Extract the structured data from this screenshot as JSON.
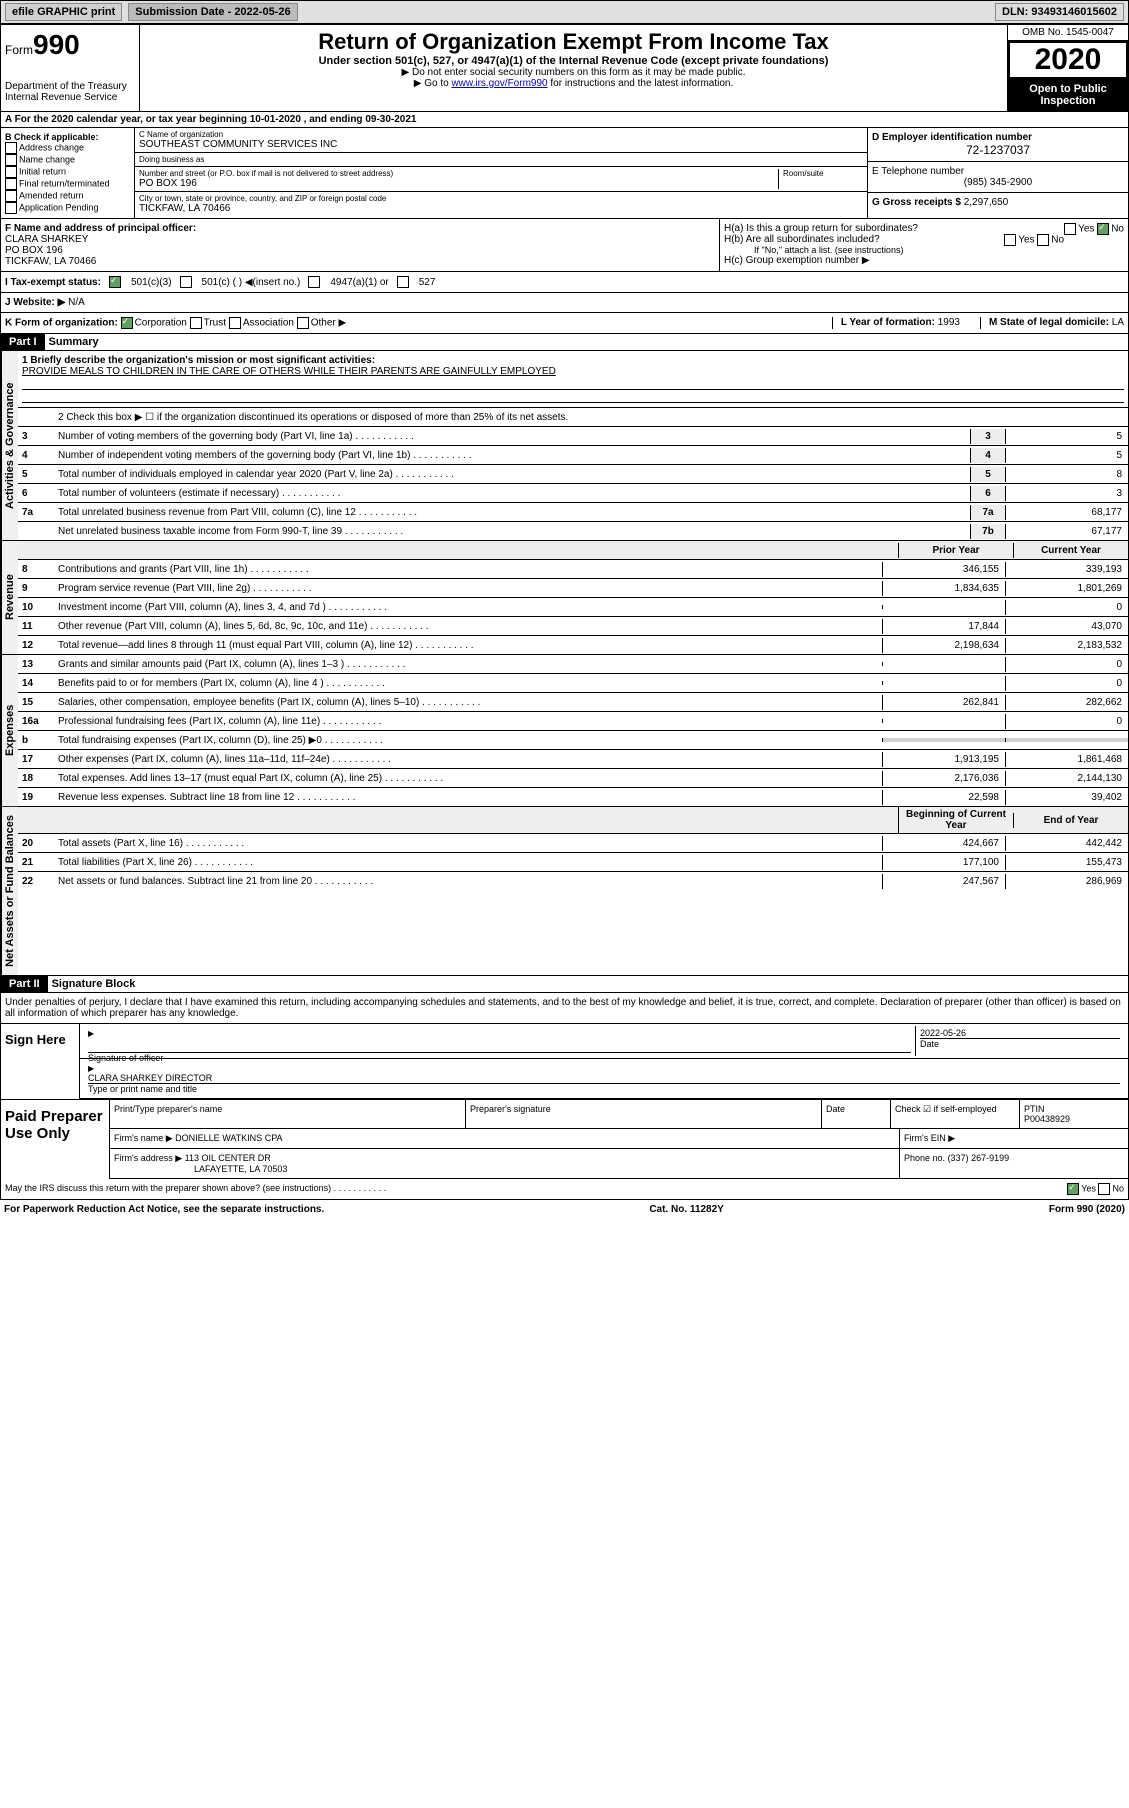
{
  "header": {
    "efile": "efile GRAPHIC print",
    "submission": "Submission Date - 2022-05-26",
    "dln": "DLN: 93493146015602"
  },
  "form": {
    "form_label": "Form",
    "form_number": "990",
    "dept": "Department of the Treasury\nInternal Revenue Service",
    "title": "Return of Organization Exempt From Income Tax",
    "subtitle": "Under section 501(c), 527, or 4947(a)(1) of the Internal Revenue Code (except private foundations)",
    "note1": "▶ Do not enter social security numbers on this form as it may be made public.",
    "note2_pre": "▶ Go to ",
    "note2_link": "www.irs.gov/Form990",
    "note2_post": " for instructions and the latest information.",
    "omb": "OMB No. 1545-0047",
    "year": "2020",
    "open_public": "Open to Public Inspection"
  },
  "section_a": "A For the 2020 calendar year, or tax year beginning 10-01-2020   , and ending 09-30-2021",
  "check_applicable": {
    "label": "B Check if applicable:",
    "opts": [
      "Address change",
      "Name change",
      "Initial return",
      "Final return/terminated",
      "Amended return",
      "Application Pending"
    ]
  },
  "org": {
    "name_label": "C Name of organization",
    "name": "SOUTHEAST COMMUNITY SERVICES INC",
    "dba_label": "Doing business as",
    "addr_label": "Number and street (or P.O. box if mail is not delivered to street address)",
    "room_label": "Room/suite",
    "addr": "PO BOX 196",
    "city_label": "City or town, state or province, country, and ZIP or foreign postal code",
    "city": "TICKFAW, LA  70466"
  },
  "ein": {
    "label": "D Employer identification number",
    "value": "72-1237037"
  },
  "phone": {
    "label": "E Telephone number",
    "value": "(985) 345-2900"
  },
  "gross": {
    "label": "G Gross receipts $",
    "value": "2,297,650"
  },
  "officer": {
    "label": "F Name and address of principal officer:",
    "name": "CLARA SHARKEY",
    "addr1": "PO BOX 196",
    "addr2": "TICKFAW, LA  70466"
  },
  "h": {
    "ha": "H(a)  Is this a group return for subordinates?",
    "hb": "H(b)  Are all subordinates included?",
    "hb_note": "If \"No,\" attach a list. (see instructions)",
    "hc": "H(c)  Group exemption number ▶",
    "yes": "Yes",
    "no": "No"
  },
  "tax_exempt": {
    "label": "I   Tax-exempt status:",
    "opt1": "501(c)(3)",
    "opt2": "501(c) (  ) ◀(insert no.)",
    "opt3": "4947(a)(1) or",
    "opt4": "527"
  },
  "website": {
    "label": "J   Website: ▶",
    "value": "N/A"
  },
  "form_org": {
    "label": "K Form of organization:",
    "opts": [
      "Corporation",
      "Trust",
      "Association",
      "Other ▶"
    ],
    "year_label": "L Year of formation:",
    "year": "1993",
    "state_label": "M State of legal domicile:",
    "state": "LA"
  },
  "part1": {
    "header": "Part I",
    "title": "Summary",
    "line1_label": "1  Briefly describe the organization's mission or most significant activities:",
    "line1_value": "PROVIDE MEALS TO CHILDREN IN THE CARE OF OTHERS WHILE THEIR PARENTS ARE GAINFULLY EMPLOYED",
    "line2": "2   Check this box ▶ ☐  if the organization discontinued its operations or disposed of more than 25% of its net assets.",
    "sides": {
      "gov": "Activities & Governance",
      "rev": "Revenue",
      "exp": "Expenses",
      "net": "Net Assets or Fund Balances"
    },
    "col_prior": "Prior Year",
    "col_current": "Current Year",
    "col_begin": "Beginning of Current Year",
    "col_end": "End of Year",
    "lines": [
      {
        "n": "3",
        "t": "Number of voting members of the governing body (Part VI, line 1a)",
        "box": "3",
        "v2": "5"
      },
      {
        "n": "4",
        "t": "Number of independent voting members of the governing body (Part VI, line 1b)",
        "box": "4",
        "v2": "5"
      },
      {
        "n": "5",
        "t": "Total number of individuals employed in calendar year 2020 (Part V, line 2a)",
        "box": "5",
        "v2": "8"
      },
      {
        "n": "6",
        "t": "Total number of volunteers (estimate if necessary)",
        "box": "6",
        "v2": "3"
      },
      {
        "n": "7a",
        "t": "Total unrelated business revenue from Part VIII, column (C), line 12",
        "box": "7a",
        "v2": "68,177"
      },
      {
        "n": "",
        "t": "Net unrelated business taxable income from Form 990-T, line 39",
        "box": "7b",
        "v2": "67,177"
      }
    ],
    "rev_lines": [
      {
        "n": "8",
        "t": "Contributions and grants (Part VIII, line 1h)",
        "v1": "346,155",
        "v2": "339,193"
      },
      {
        "n": "9",
        "t": "Program service revenue (Part VIII, line 2g)",
        "v1": "1,834,635",
        "v2": "1,801,269"
      },
      {
        "n": "10",
        "t": "Investment income (Part VIII, column (A), lines 3, 4, and 7d )",
        "v1": "",
        "v2": "0"
      },
      {
        "n": "11",
        "t": "Other revenue (Part VIII, column (A), lines 5, 6d, 8c, 9c, 10c, and 11e)",
        "v1": "17,844",
        "v2": "43,070"
      },
      {
        "n": "12",
        "t": "Total revenue—add lines 8 through 11 (must equal Part VIII, column (A), line 12)",
        "v1": "2,198,634",
        "v2": "2,183,532"
      }
    ],
    "exp_lines": [
      {
        "n": "13",
        "t": "Grants and similar amounts paid (Part IX, column (A), lines 1–3 )",
        "v1": "",
        "v2": "0"
      },
      {
        "n": "14",
        "t": "Benefits paid to or for members (Part IX, column (A), line 4 )",
        "v1": "",
        "v2": "0"
      },
      {
        "n": "15",
        "t": "Salaries, other compensation, employee benefits (Part IX, column (A), lines 5–10)",
        "v1": "262,841",
        "v2": "282,662"
      },
      {
        "n": "16a",
        "t": "Professional fundraising fees (Part IX, column (A), line 11e)",
        "v1": "",
        "v2": "0"
      },
      {
        "n": "b",
        "t": "Total fundraising expenses (Part IX, column (D), line 25) ▶0",
        "v1": "",
        "v2": "",
        "gray": true
      },
      {
        "n": "17",
        "t": "Other expenses (Part IX, column (A), lines 11a–11d, 11f–24e)",
        "v1": "1,913,195",
        "v2": "1,861,468"
      },
      {
        "n": "18",
        "t": "Total expenses. Add lines 13–17 (must equal Part IX, column (A), line 25)",
        "v1": "2,176,036",
        "v2": "2,144,130"
      },
      {
        "n": "19",
        "t": "Revenue less expenses. Subtract line 18 from line 12",
        "v1": "22,598",
        "v2": "39,402"
      }
    ],
    "net_lines": [
      {
        "n": "20",
        "t": "Total assets (Part X, line 16)",
        "v1": "424,667",
        "v2": "442,442"
      },
      {
        "n": "21",
        "t": "Total liabilities (Part X, line 26)",
        "v1": "177,100",
        "v2": "155,473"
      },
      {
        "n": "22",
        "t": "Net assets or fund balances. Subtract line 21 from line 20",
        "v1": "247,567",
        "v2": "286,969"
      }
    ]
  },
  "part2": {
    "header": "Part II",
    "title": "Signature Block",
    "text": "Under penalties of perjury, I declare that I have examined this return, including accompanying schedules and statements, and to the best of my knowledge and belief, it is true, correct, and complete. Declaration of preparer (other than officer) is based on all information of which preparer has any knowledge.",
    "sign_here": "Sign Here",
    "sig_officer": "Signature of officer",
    "date": "Date",
    "date_val": "2022-05-26",
    "name_title": "CLARA SHARKEY DIRECTOR",
    "name_title_label": "Type or print name and title",
    "paid_prep": "Paid Preparer Use Only",
    "prep_name_label": "Print/Type preparer's name",
    "prep_sig_label": "Preparer's signature",
    "check_self": "Check ☑ if self-employed",
    "ptin_label": "PTIN",
    "ptin": "P00438929",
    "firm_name_label": "Firm's name   ▶",
    "firm_name": "DONIELLE WATKINS CPA",
    "firm_ein_label": "Firm's EIN ▶",
    "firm_addr_label": "Firm's address ▶",
    "firm_addr": "113 OIL CENTER DR",
    "firm_city": "LAFAYETTE, LA  70503",
    "phone_label": "Phone no.",
    "phone": "(337) 267-9199",
    "discuss": "May the IRS discuss this return with the preparer shown above? (see instructions)",
    "yes": "Yes",
    "no": "No"
  },
  "footer": {
    "paperwork": "For Paperwork Reduction Act Notice, see the separate instructions.",
    "cat": "Cat. No. 11282Y",
    "form": "Form 990 (2020)"
  }
}
